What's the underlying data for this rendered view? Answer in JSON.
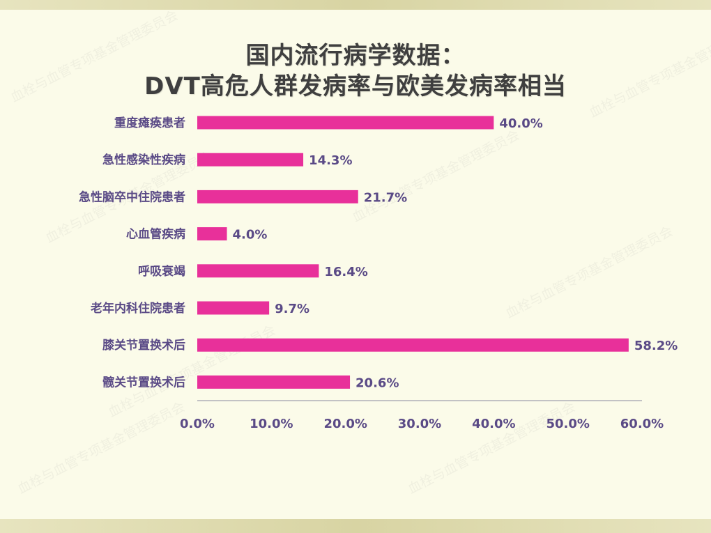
{
  "title_line1": "国内流行病学数据：",
  "title_line2": "DVT高危人群发病率与欧美发病率相当",
  "watermark_text": "血栓与血管专项基金管理委员会",
  "colors": {
    "bar": "#e8309a",
    "label": "#5a4a86",
    "axis": "#8a8aa0",
    "title": "#3f3f3f"
  },
  "chart_data": {
    "type": "bar",
    "orientation": "horizontal",
    "categories": [
      "重度瘫痪患者",
      "急性感染性疾病",
      "急性脑卒中住院患者",
      "心血管疾病",
      "呼吸衰竭",
      "老年内科住院患者",
      "膝关节置换术后",
      "髋关节置换术后"
    ],
    "values": [
      40.0,
      14.3,
      21.7,
      4.0,
      16.4,
      9.7,
      58.2,
      20.6
    ],
    "value_labels": [
      "40.0%",
      "14.3%",
      "21.7%",
      "4.0%",
      "16.4%",
      "9.7%",
      "58.2%",
      "20.6%"
    ],
    "xlim": [
      0,
      60
    ],
    "x_ticks": [
      0,
      10,
      20,
      30,
      40,
      50,
      60
    ],
    "x_tick_labels": [
      "0.0%",
      "10.0%",
      "20.0%",
      "30.0%",
      "40.0%",
      "50.0%",
      "60.0%"
    ],
    "grid": false,
    "legend": "none"
  }
}
